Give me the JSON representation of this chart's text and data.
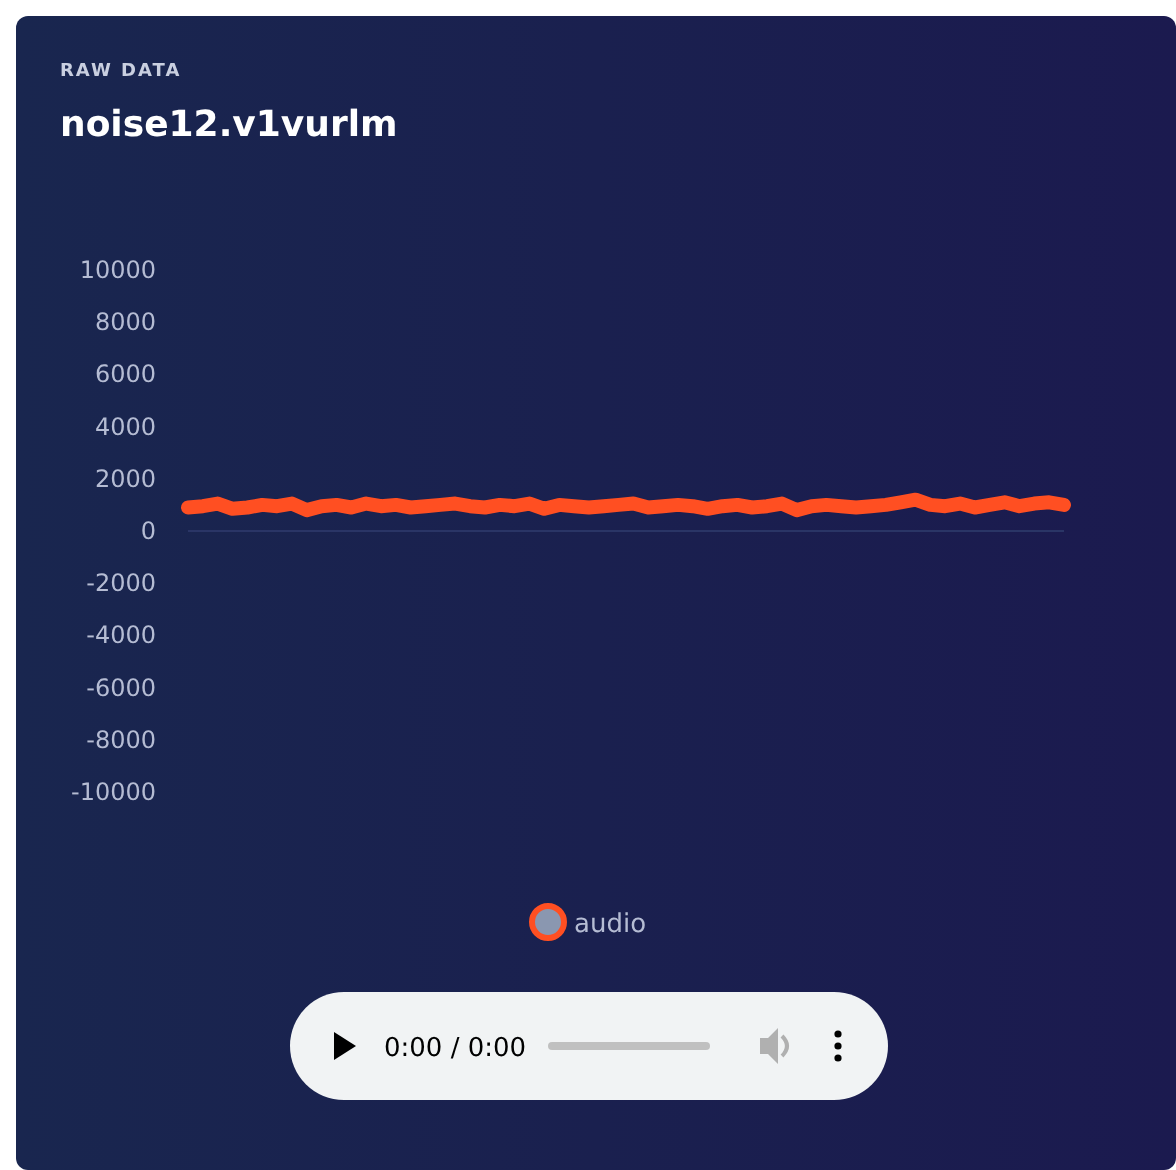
{
  "chart_data": {
    "type": "line",
    "subtitle": "RAW DATA",
    "title": "noise12.v1vurlm",
    "categories": [
      null,
      null,
      null,
      null,
      null,
      null,
      null,
      null,
      null,
      null,
      null,
      null,
      null,
      null,
      null,
      null,
      null,
      null,
      null,
      null,
      null,
      null,
      null,
      null,
      null,
      null,
      null,
      null,
      null,
      null,
      null,
      null,
      null,
      null,
      null,
      null,
      null,
      null,
      null,
      null,
      null,
      null,
      null,
      null,
      null,
      null,
      null,
      null,
      null,
      null,
      null,
      null,
      null,
      null,
      null,
      null,
      null,
      null,
      null,
      null
    ],
    "series": [
      {
        "name": "audio",
        "color": "#ff4f22",
        "values": [
          900,
          950,
          1050,
          850,
          900,
          1000,
          950,
          1050,
          800,
          950,
          1000,
          900,
          1050,
          950,
          1000,
          900,
          950,
          1000,
          1050,
          950,
          900,
          1000,
          950,
          1050,
          850,
          1000,
          950,
          900,
          950,
          1000,
          1050,
          900,
          950,
          1000,
          950,
          850,
          950,
          1000,
          900,
          950,
          1050,
          800,
          950,
          1000,
          950,
          900,
          950,
          1000,
          1100,
          1200,
          1000,
          950,
          1050,
          900,
          1000,
          1100,
          950,
          1050,
          1100,
          1000
        ]
      }
    ],
    "ylim": [
      -10000,
      10000
    ],
    "yticks": [
      10000,
      8000,
      6000,
      4000,
      2000,
      0,
      -2000,
      -4000,
      -6000,
      -8000,
      -10000
    ],
    "tick_labels": "y",
    "ref_lines": [
      {
        "axis": "y",
        "value": 0,
        "color": "#2a3566"
      }
    ],
    "legend": "bottom",
    "line_style": "solid",
    "annotations": [
      "0:00 / 0:00"
    ]
  }
}
